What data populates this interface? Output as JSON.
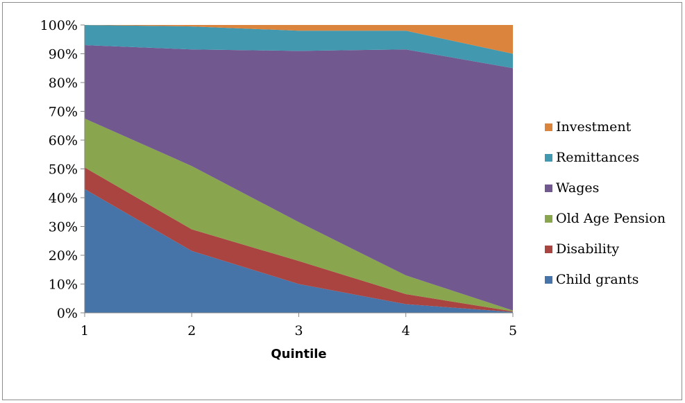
{
  "chart_data": {
    "type": "area",
    "stacked": "percent",
    "xlabel": "Quintile",
    "ylabel": "",
    "x": [
      1,
      2,
      3,
      4,
      5
    ],
    "y_ticks": [
      "0%",
      "10%",
      "20%",
      "30%",
      "40%",
      "50%",
      "60%",
      "70%",
      "80%",
      "90%",
      "100%"
    ],
    "x_ticks": [
      "1",
      "2",
      "3",
      "4",
      "5"
    ],
    "ylim": [
      0,
      100
    ],
    "grid": false,
    "legend_position": "right",
    "series": [
      {
        "name": "Child grants",
        "color": "#4674a8",
        "values": [
          43,
          21.5,
          10,
          3,
          0.3
        ]
      },
      {
        "name": "Disability",
        "color": "#a94441",
        "values": [
          7.5,
          7.5,
          8,
          3.5,
          0.2
        ]
      },
      {
        "name": "Old Age Pension",
        "color": "#89a54e",
        "values": [
          17,
          22,
          13.5,
          6.5,
          0.3
        ]
      },
      {
        "name": "Wages",
        "color": "#71588f",
        "values": [
          25.5,
          40.5,
          59.5,
          78.5,
          84.2
        ]
      },
      {
        "name": "Remittances",
        "color": "#4198af",
        "values": [
          7,
          8,
          7,
          6.5,
          5
        ]
      },
      {
        "name": "Investment",
        "color": "#db843d",
        "values": [
          0,
          0.5,
          2,
          2,
          10
        ]
      }
    ]
  }
}
